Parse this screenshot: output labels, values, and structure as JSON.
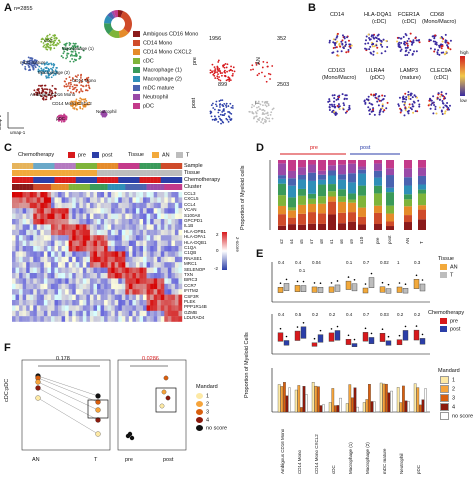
{
  "figure": {
    "panel_labels": [
      "A",
      "B",
      "C",
      "D",
      "E",
      "F"
    ],
    "panel_a": {
      "n_label": "n=2855",
      "umap_axis_x": "umap-1",
      "umap_axis_y": "umap-2",
      "cluster_labels": [
        "cDC",
        "Macrophage (1)",
        "mDC mature",
        "Macrophage (2)",
        "CD14 Mono",
        "Ambigous CD16 Mono",
        "CD14 Mono CXCL2",
        "Neutrophil",
        "pDC"
      ],
      "legend": [
        {
          "label": "Ambigous CD16 Mono",
          "color": "#8b1a1a"
        },
        {
          "label": "CD14 Mono",
          "color": "#cf4b2a"
        },
        {
          "label": "CD14 Mono CXCL2",
          "color": "#e58b2a"
        },
        {
          "label": "cDC",
          "color": "#7fb43a"
        },
        {
          "label": "Macrophage (1)",
          "color": "#3a9a5a"
        },
        {
          "label": "Macrophage (2)",
          "color": "#2f8fb8"
        },
        {
          "label": "mDC mature",
          "color": "#4a63b0"
        },
        {
          "label": "Neutrophil",
          "color": "#9a4aa8"
        },
        {
          "label": "pDC",
          "color": "#c43a8a"
        }
      ],
      "split_counts": {
        "pre_an": "1956",
        "pre_t": "352",
        "post_an": "899",
        "post_t": "2503"
      },
      "split_labels": {
        "pre": "pre",
        "post": "post",
        "an": "AN",
        "t": "T"
      }
    },
    "panel_b": {
      "markers": [
        {
          "name": "CD14",
          "cell": ""
        },
        {
          "name": "HLA-DQA1",
          "cell": "(cDC)"
        },
        {
          "name": "FCER1A",
          "cell": "(cDC)"
        },
        {
          "name": "CD68",
          "cell": "(Mono/Macro)"
        },
        {
          "name": "CD163",
          "cell": "(Mono/Macro)"
        },
        {
          "name": "LILRA4",
          "cell": "(pDC)"
        },
        {
          "name": "LAMP3",
          "cell": "(mature)"
        },
        {
          "name": "CLEC9A",
          "cell": "(cDC)"
        }
      ],
      "scale_high": "high",
      "scale_low": "low"
    },
    "panel_c": {
      "legend_chemo_title": "Chemotherapy",
      "legend_pre": "pre",
      "legend_post": "post",
      "legend_tissue_title": "Tissue",
      "legend_an": "AN",
      "legend_t": "T",
      "track_labels": [
        "Sample",
        "Tissue",
        "Chemotherapy",
        "Cluster"
      ],
      "genes": [
        "CCL3",
        "CXCL5",
        "CCL4",
        "VCAN",
        "S100A8",
        "GPCPD1",
        "IL1B",
        "HLA-DPB1",
        "HLA-DPA1",
        "HLA-DQB1",
        "C1QA",
        "C1QB",
        "RNASE1",
        "MRC1",
        "SELENOP",
        "TXN",
        "BIRC3",
        "CCR7",
        "IFITM2",
        "CSF3R",
        "PLEK",
        "PPP1R14B",
        "GZMB",
        "LDLRAD4"
      ],
      "zscore_label": "z-score",
      "zscore_ticks": [
        "2",
        "1",
        "0",
        "-1",
        "-2"
      ]
    },
    "panel_d": {
      "ylabel": "Proportion of Myeloid cells",
      "pre_label": "pre",
      "post_label": "post",
      "samples": [
        "s2",
        "s4",
        "s5",
        "s7",
        "s8",
        "s1",
        "s6",
        "s9",
        "s10"
      ],
      "group_labels": [
        "pre",
        "post",
        "AN",
        "T"
      ]
    },
    "panel_e": {
      "ylabel": "Proportion of Myeloid Cells",
      "tissue_title": "Tissue",
      "tissue_an": "AN",
      "tissue_t": "T",
      "chemo_title": "Chemotherapy",
      "chemo_pre": "pre",
      "chemo_post": "post",
      "mandard_title": "Mandard",
      "mandard_levels": [
        "1",
        "2",
        "3",
        "4",
        "no score"
      ],
      "categories": [
        "Ambigous CD16 Mono",
        "CD14 Mono",
        "CD14 Mono CXCL2",
        "cDC",
        "Macrophage (1)",
        "Macrophage (2)",
        "mDC mature",
        "Neutrophil",
        "pDC"
      ],
      "pvals_tissue": [
        "0.4",
        "0.4",
        "0.04",
        "",
        "0.1",
        "0.7",
        "0.02",
        "1",
        "0.3"
      ],
      "pvals_tissue_extra": [
        "",
        "0.1",
        "",
        "",
        "",
        "",
        "",
        "",
        ""
      ],
      "pvals_chemo": [
        "0.4",
        "0.5",
        "0.2",
        "0.2",
        "0.4",
        "0.7",
        "0.03",
        "0.2",
        "0.2"
      ]
    },
    "panel_f": {
      "ylabel": "cDC:pDC",
      "left_pval": "0.178",
      "right_pval": "0.0286",
      "left_x": [
        "AN",
        "T"
      ],
      "right_x": [
        "pre",
        "post"
      ],
      "legend_title": "Mandard",
      "legend_items": [
        "1",
        "2",
        "3",
        "4",
        "no score"
      ]
    }
  },
  "colors": {
    "pre": "#d7191c",
    "post": "#2b3ea8",
    "an": "#f2a93b",
    "t": "#bdbdbd",
    "mandard": [
      "#fde9a5",
      "#f6a43b",
      "#d95f0e",
      "#8b1a0d",
      "#ffffff"
    ]
  }
}
